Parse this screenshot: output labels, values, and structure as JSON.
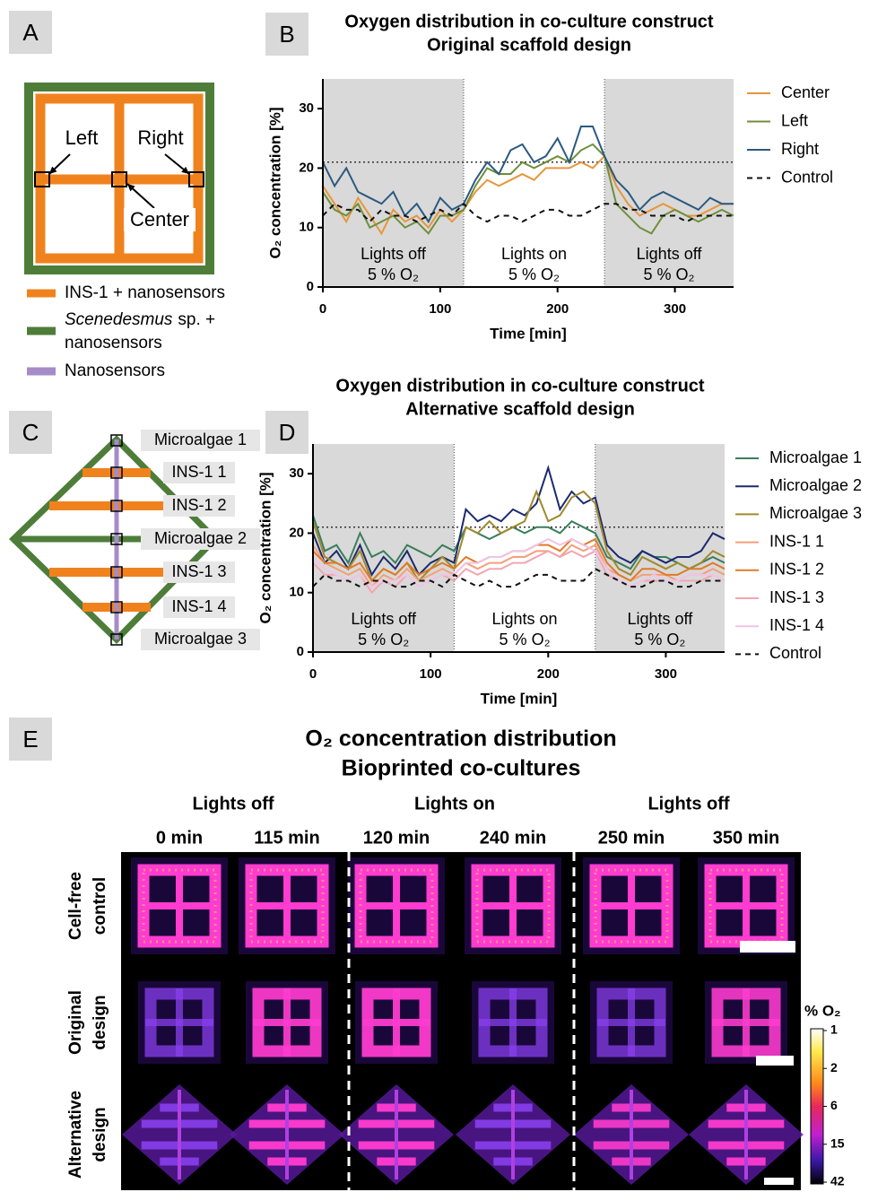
{
  "panel_letters": [
    "A",
    "B",
    "C",
    "D",
    "E"
  ],
  "diagram_a": {
    "labels": [
      "Left",
      "Right",
      "Center"
    ],
    "legend": {
      "ins": "INS-1 + nanosensors",
      "algae_italic": "Scenedesmus",
      "algae_rest": "sp. +",
      "algae_line2": "nanosensors",
      "sensors": "Nanosensors"
    }
  },
  "diagram_c": {
    "labels": [
      "Microalgae 1",
      "INS-1 1",
      "INS-1 2",
      "Microalgae 2",
      "INS-1 3",
      "INS-1 4",
      "Microalgae 3"
    ]
  },
  "chart_data": [
    {
      "type": "line",
      "title": "Oxygen distribution in co-culture construct",
      "subtitle": "Original scaffold design",
      "x_label": "Time [min]",
      "y_label": "O₂ concentration [%]",
      "x": [
        0,
        10,
        20,
        30,
        40,
        50,
        60,
        70,
        80,
        90,
        100,
        110,
        120,
        130,
        140,
        150,
        160,
        170,
        180,
        190,
        200,
        210,
        220,
        230,
        240,
        250,
        260,
        270,
        280,
        290,
        300,
        310,
        320,
        330,
        340,
        350
      ],
      "series": [
        {
          "name": "Center",
          "color": "#e8963c",
          "dashed": false,
          "values": [
            17,
            14,
            11,
            15,
            12,
            9,
            13,
            11,
            12,
            10,
            13,
            11,
            13,
            16,
            18,
            17,
            18,
            19,
            18,
            20,
            20,
            20,
            21,
            20,
            22,
            17,
            14,
            12,
            13,
            14,
            13,
            12,
            12,
            13,
            14,
            14
          ]
        },
        {
          "name": "Left",
          "color": "#6f8f3a",
          "dashed": false,
          "values": [
            16,
            13,
            12,
            14,
            10,
            11,
            12,
            10,
            11,
            9,
            12,
            12,
            13,
            17,
            20,
            19,
            19,
            21,
            20,
            21,
            22,
            21,
            23,
            24,
            22,
            14,
            12,
            10,
            9,
            12,
            13,
            12,
            11,
            12,
            13,
            12
          ]
        },
        {
          "name": "Right",
          "color": "#2b5a7f",
          "dashed": false,
          "values": [
            21,
            17,
            20,
            16,
            15,
            14,
            16,
            12,
            14,
            11,
            15,
            13,
            14,
            18,
            21,
            19,
            23,
            24,
            21,
            22,
            25,
            21,
            27,
            27,
            22,
            18,
            16,
            13,
            15,
            16,
            15,
            14,
            13,
            15,
            14,
            14
          ]
        },
        {
          "name": "Control",
          "color": "#111111",
          "dashed": true,
          "values": [
            12,
            14,
            13,
            13,
            11,
            13,
            12,
            12,
            11,
            12,
            13,
            12,
            14,
            12,
            11,
            12,
            12,
            11,
            12,
            13,
            13,
            12,
            12,
            13,
            14,
            14,
            13,
            13,
            12,
            12,
            12,
            11,
            12,
            12,
            12,
            12
          ]
        }
      ],
      "regions": [
        {
          "start": 0,
          "end": 120,
          "label": "Lights off",
          "sublabel": "5 % O₂",
          "shaded": true
        },
        {
          "start": 120,
          "end": 240,
          "label": "Lights on",
          "sublabel": "5 % O₂",
          "shaded": false
        },
        {
          "start": 240,
          "end": 350,
          "label": "Lights off",
          "sublabel": "5 % O₂",
          "shaded": true
        }
      ],
      "reference_line": 21,
      "xlim": [
        0,
        350
      ],
      "ylim": [
        0,
        35
      ],
      "xticks": [
        0,
        100,
        200,
        300
      ],
      "yticks": [
        0,
        10,
        20,
        30
      ],
      "legend": "right"
    },
    {
      "type": "line",
      "title": "Oxygen distribution in co-culture construct",
      "subtitle": "Alternative scaffold design",
      "x_label": "Time [min]",
      "y_label": "O₂ concentration [%]",
      "x": [
        0,
        10,
        20,
        30,
        40,
        50,
        60,
        70,
        80,
        90,
        100,
        110,
        120,
        130,
        140,
        150,
        160,
        170,
        180,
        190,
        200,
        210,
        220,
        230,
        240,
        250,
        260,
        270,
        280,
        290,
        300,
        310,
        320,
        330,
        340,
        350
      ],
      "series": [
        {
          "name": "Microalgae 1",
          "color": "#3a7d5e",
          "dashed": false,
          "values": [
            23,
            17,
            18,
            15,
            20,
            16,
            17,
            15,
            18,
            17,
            16,
            18,
            17,
            21,
            20,
            19,
            20,
            21,
            20,
            21,
            21,
            20,
            22,
            21,
            20,
            16,
            15,
            14,
            17,
            16,
            16,
            15,
            14,
            15,
            16,
            15
          ]
        },
        {
          "name": "Microalgae 2",
          "color": "#1c2a6e",
          "dashed": false,
          "values": [
            20,
            15,
            17,
            14,
            18,
            13,
            16,
            14,
            17,
            13,
            15,
            16,
            15,
            24,
            22,
            23,
            22,
            24,
            23,
            25,
            31,
            24,
            27,
            25,
            26,
            18,
            16,
            15,
            17,
            16,
            15,
            16,
            16,
            17,
            20,
            19
          ]
        },
        {
          "name": "Microalgae 3",
          "color": "#a08a2e",
          "dashed": false,
          "values": [
            22,
            16,
            15,
            14,
            17,
            12,
            14,
            13,
            15,
            12,
            14,
            16,
            14,
            21,
            20,
            22,
            20,
            21,
            22,
            27,
            22,
            23,
            26,
            27,
            25,
            17,
            14,
            13,
            16,
            15,
            14,
            15,
            14,
            15,
            17,
            16
          ]
        },
        {
          "name": "INS-1 1",
          "color": "#f4a07a",
          "dashed": false,
          "values": [
            18,
            15,
            14,
            13,
            14,
            11,
            13,
            12,
            14,
            12,
            13,
            14,
            13,
            15,
            14,
            15,
            15,
            16,
            16,
            17,
            17,
            16,
            18,
            17,
            18,
            14,
            13,
            12,
            13,
            13,
            13,
            12,
            13,
            13,
            14,
            13
          ]
        },
        {
          "name": "INS-1 2",
          "color": "#e07b28",
          "dashed": false,
          "values": [
            17,
            15,
            15,
            14,
            15,
            12,
            14,
            13,
            15,
            13,
            14,
            15,
            14,
            16,
            15,
            16,
            16,
            17,
            17,
            18,
            18,
            17,
            19,
            18,
            19,
            15,
            13,
            12,
            14,
            14,
            13,
            13,
            14,
            14,
            15,
            14
          ]
        },
        {
          "name": "INS-1 3",
          "color": "#f2a6b0",
          "dashed": false,
          "values": [
            15,
            13,
            13,
            12,
            13,
            10,
            12,
            11,
            13,
            11,
            12,
            13,
            12,
            14,
            13,
            14,
            14,
            15,
            15,
            16,
            17,
            16,
            17,
            16,
            17,
            13,
            12,
            11,
            12,
            12,
            12,
            12,
            12,
            12,
            13,
            12
          ]
        },
        {
          "name": "INS-1 4",
          "color": "#f0c4e8",
          "dashed": false,
          "values": [
            16,
            14,
            13,
            12,
            13,
            11,
            12,
            12,
            13,
            11,
            12,
            13,
            13,
            15,
            15,
            16,
            16,
            17,
            17,
            18,
            19,
            18,
            19,
            18,
            17,
            14,
            12,
            11,
            12,
            13,
            12,
            12,
            13,
            13,
            13,
            12
          ]
        },
        {
          "name": "Control",
          "color": "#111111",
          "dashed": true,
          "values": [
            11,
            13,
            12,
            12,
            11,
            12,
            12,
            11,
            11,
            12,
            12,
            11,
            13,
            12,
            11,
            12,
            11,
            11,
            12,
            13,
            13,
            12,
            12,
            12,
            14,
            13,
            12,
            11,
            11,
            12,
            12,
            11,
            11,
            12,
            12,
            12
          ]
        }
      ],
      "regions": [
        {
          "start": 0,
          "end": 120,
          "label": "Lights off",
          "sublabel": "5 % O₂",
          "shaded": true
        },
        {
          "start": 120,
          "end": 240,
          "label": "Lights on",
          "sublabel": "5 % O₂",
          "shaded": false
        },
        {
          "start": 240,
          "end": 350,
          "label": "Lights off",
          "sublabel": "5 % O₂",
          "shaded": true
        }
      ],
      "reference_line": 21,
      "xlim": [
        0,
        350
      ],
      "ylim": [
        0,
        35
      ],
      "xticks": [
        0,
        100,
        200,
        300
      ],
      "yticks": [
        0,
        10,
        20,
        30
      ],
      "legend": "right"
    }
  ],
  "panel_e": {
    "title": "O₂ concentration distribution",
    "subtitle": "Bioprinted co-cultures",
    "phases": [
      "Lights off",
      "Lights on",
      "Lights off"
    ],
    "times": [
      "0 min",
      "115 min",
      "120 min",
      "240 min",
      "250 min",
      "350 min"
    ],
    "rows": [
      [
        "Cell-free",
        "control"
      ],
      [
        "Original",
        "design"
      ],
      [
        "Alternative",
        "design"
      ]
    ],
    "colorbar": {
      "label": "% O₂",
      "ticks": [
        1,
        2,
        6,
        15,
        42
      ]
    }
  }
}
